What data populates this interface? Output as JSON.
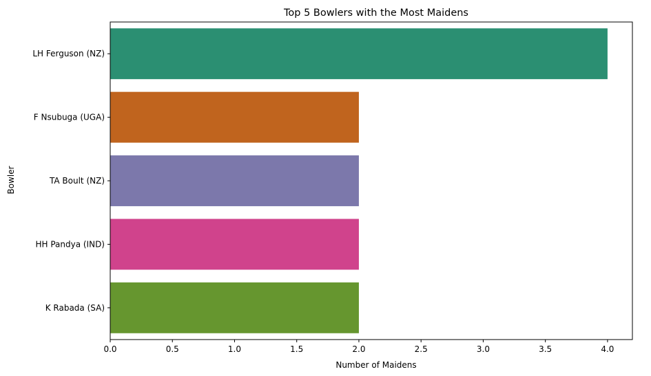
{
  "chart_data": {
    "type": "bar",
    "orientation": "horizontal",
    "title": "Top 5 Bowlers with the Most Maidens",
    "xlabel": "Number of Maidens",
    "ylabel": "Bowler",
    "categories": [
      "LH Ferguson (NZ)",
      "F Nsubuga (UGA)",
      "TA Boult (NZ)",
      "HH Pandya (IND)",
      "K Rabada (SA)"
    ],
    "values": [
      4,
      2,
      2,
      2,
      2
    ],
    "colors": [
      "#2b8f72",
      "#c0641e",
      "#7c78ab",
      "#d0438c",
      "#66962f"
    ],
    "xlim": [
      0,
      4.2
    ],
    "xticks": [
      0.0,
      0.5,
      1.0,
      1.5,
      2.0,
      2.5,
      3.0,
      3.5,
      4.0
    ],
    "xtick_labels": [
      "0.0",
      "0.5",
      "1.0",
      "1.5",
      "2.0",
      "2.5",
      "3.0",
      "3.5",
      "4.0"
    ],
    "grid": false,
    "legend": "none"
  }
}
